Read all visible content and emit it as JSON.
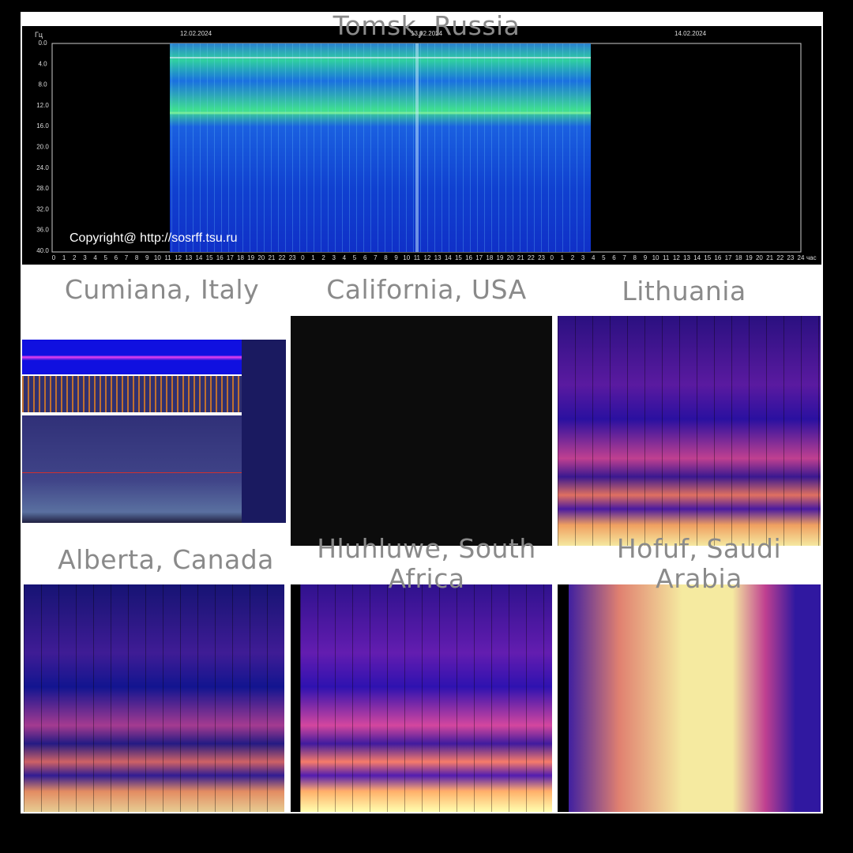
{
  "panels": [
    {
      "title": "Tomsk, Russia"
    },
    {
      "title": "Cumiana, Italy"
    },
    {
      "title": "California, USA"
    },
    {
      "title": "Lithuania"
    },
    {
      "title": "Alberta, Canada"
    },
    {
      "title": "Hluhluwe, South Africa"
    },
    {
      "title": "Hofuf, Saudi Arabia"
    }
  ],
  "tomsk": {
    "y_unit": "Гц",
    "dates": [
      "12.02.2024",
      "13.02.2024",
      "14.02.2024"
    ],
    "y_labels": [
      "0.0",
      "4.0",
      "8.0",
      "12.0",
      "16.0",
      "20.0",
      "24.0",
      "28.0",
      "32.0",
      "36.0",
      "40.0"
    ],
    "x_labels": [
      0,
      1,
      2,
      3,
      4,
      5,
      6,
      7,
      8,
      9,
      10,
      11,
      12,
      13,
      14,
      15,
      16,
      17,
      18,
      19,
      20,
      21,
      22,
      23,
      0,
      1,
      2,
      3,
      4,
      5,
      6,
      7,
      8,
      9,
      10,
      11,
      12,
      13,
      14,
      15,
      16,
      17,
      18,
      19,
      20,
      21,
      22,
      23,
      0,
      1,
      2,
      3,
      4,
      5,
      6,
      7,
      8,
      9,
      10,
      11,
      12,
      13,
      14,
      15,
      16,
      17,
      18,
      19,
      20,
      21,
      22,
      23,
      24
    ],
    "x_unit": "час",
    "copyright": "Copyright@ http://sosrff.tsu.ru"
  }
}
